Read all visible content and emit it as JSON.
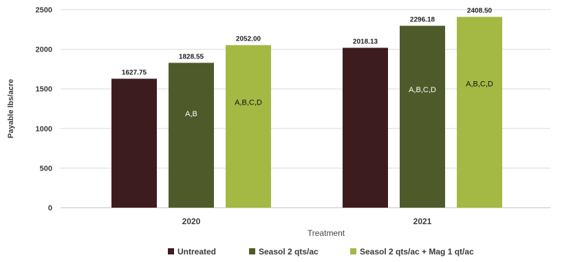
{
  "chart_data": {
    "type": "bar",
    "categories": [
      "2020",
      "2021"
    ],
    "series": [
      {
        "name": "Untreated",
        "color": "#3d1c1f",
        "values": [
          1627.75,
          2018.13
        ],
        "inner_labels": [
          "",
          ""
        ],
        "inner_label_color": "#ffffff"
      },
      {
        "name": "Seasol 2 qts/ac",
        "color": "#4f5a2b",
        "values": [
          1828.55,
          2296.18
        ],
        "inner_labels": [
          "A,B",
          "A,B,C,D"
        ],
        "inner_label_color": "#ffffff"
      },
      {
        "name": "Seasol 2 qts/ac + Mag 1 qt/ac",
        "color": "#a4b844",
        "values": [
          2052.0,
          2408.5
        ],
        "inner_labels": [
          "A,B,C,D",
          "A,B,C,D"
        ],
        "inner_label_color": "#111111"
      }
    ],
    "data_labels": [
      [
        "1627.75",
        "2018.13"
      ],
      [
        "1828.55",
        "2296.18"
      ],
      [
        "2052.00",
        "2408.50"
      ]
    ],
    "xlabel": "Treatment",
    "ylabel": "Payable lbs/acre",
    "ylim": [
      0,
      2500
    ],
    "yticks": [
      0,
      500,
      1000,
      1500,
      2000,
      2500
    ],
    "grid": true,
    "legend": "bottom"
  }
}
